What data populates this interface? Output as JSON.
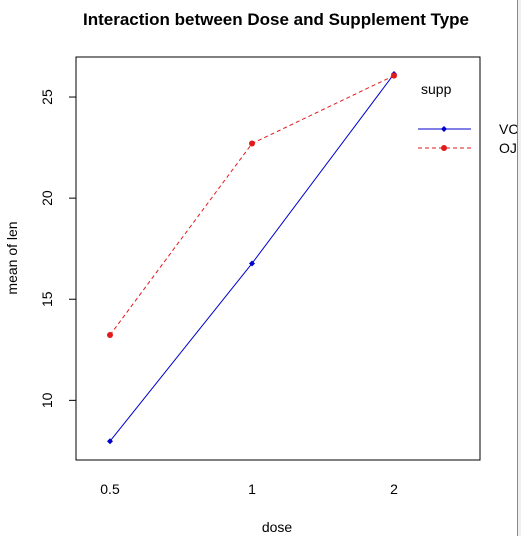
{
  "chart_data": {
    "type": "line",
    "title": "Interaction between Dose and Supplement Type",
    "xlabel": "dose",
    "ylabel": "mean of len",
    "categories": [
      "0.5",
      "1",
      "2"
    ],
    "yticks": [
      10,
      15,
      20,
      25
    ],
    "ylim": [
      7.05,
      26.98
    ],
    "legend": {
      "title": "supp",
      "position": "top-right"
    },
    "series": [
      {
        "name": "VC",
        "values": [
          7.98,
          16.77,
          26.14
        ],
        "color": "#0000cd",
        "line_style": "solid",
        "marker": "diamond"
      },
      {
        "name": "OJ",
        "values": [
          13.23,
          22.7,
          26.06
        ],
        "color": "#e31a1c",
        "line_style": "dashed",
        "marker": "circle"
      }
    ],
    "grid": false
  }
}
